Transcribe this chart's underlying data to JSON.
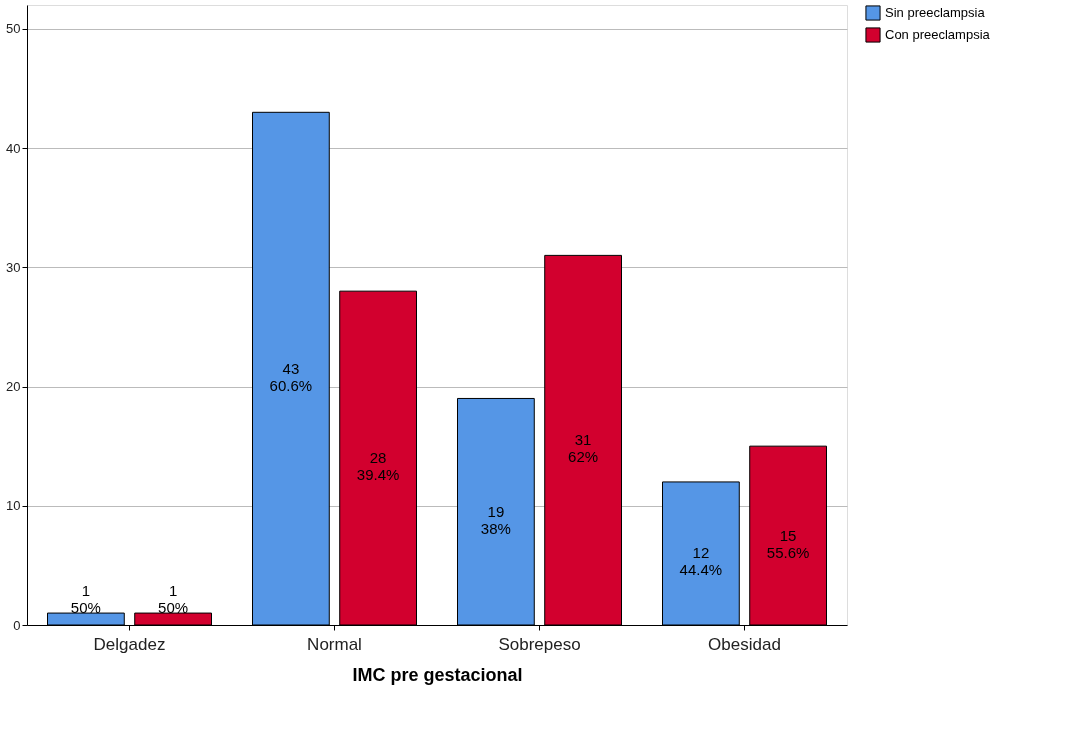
{
  "chart_data": {
    "type": "bar",
    "xlabel": "IMC pre gestacional",
    "categories": [
      "Delgadez",
      "Normal",
      "Sobrepeso",
      "Obesidad"
    ],
    "series": [
      {
        "name": "Sin preeclampsia",
        "color": "#5596e6",
        "values": [
          1,
          43,
          19,
          12
        ],
        "value_labels": [
          "1\n50%",
          "43\n60.6%",
          "19\n38%",
          "12\n44.4%"
        ]
      },
      {
        "name": "Con preeclampsia",
        "color": "#d2002e",
        "values": [
          1,
          28,
          31,
          15
        ],
        "value_labels": [
          "1\n50%",
          "28\n39.4%",
          "31\n62%",
          "15\n55.6%"
        ]
      }
    ],
    "ylim": [
      0,
      52
    ],
    "yticks": [
      0,
      10,
      20,
      30,
      40,
      50
    ],
    "grid": "y",
    "legend": "right"
  }
}
